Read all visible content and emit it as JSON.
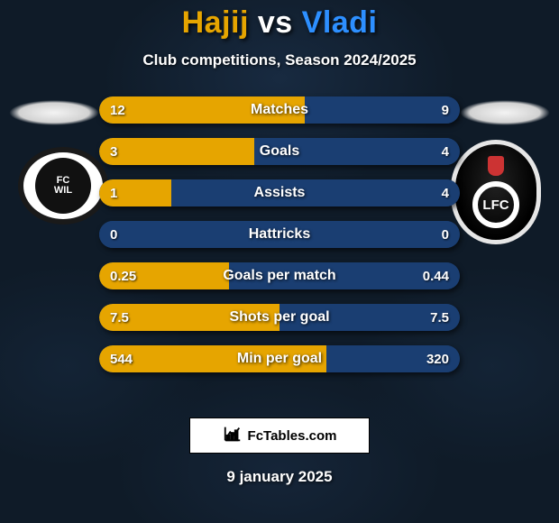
{
  "background_color": "#0f1b28",
  "header": {
    "player1": "Hajij",
    "vs": "vs",
    "player2": "Vladi",
    "player1_color": "#e6a500",
    "player2_color": "#2d8fff",
    "vs_color": "#ffffff",
    "subtitle": "Club competitions, Season 2024/2025",
    "title_fontsize": 34,
    "subtitle_fontsize": 17
  },
  "crest_left": {
    "line1": "FC",
    "line2": "WIL"
  },
  "crest_right": {
    "text": "LFC"
  },
  "bars": {
    "height": 30,
    "radius": 15,
    "left_color": "#e6a500",
    "right_color": "#1a3e72",
    "label_color": "#ffffff",
    "value_color": "#ffffff",
    "label_fontsize": 16,
    "value_fontsize": 15,
    "items": [
      {
        "label": "Matches",
        "left_val": "12",
        "right_val": "9",
        "left_pct": 57,
        "right_pct": 43
      },
      {
        "label": "Goals",
        "left_val": "3",
        "right_val": "4",
        "left_pct": 43,
        "right_pct": 57
      },
      {
        "label": "Assists",
        "left_val": "1",
        "right_val": "4",
        "left_pct": 20,
        "right_pct": 80
      },
      {
        "label": "Hattricks",
        "left_val": "0",
        "right_val": "0",
        "left_pct": 0,
        "right_pct": 100
      },
      {
        "label": "Goals per match",
        "left_val": "0.25",
        "right_val": "0.44",
        "left_pct": 36,
        "right_pct": 64
      },
      {
        "label": "Shots per goal",
        "left_val": "7.5",
        "right_val": "7.5",
        "left_pct": 50,
        "right_pct": 50
      },
      {
        "label": "Min per goal",
        "left_val": "544",
        "right_val": "320",
        "left_pct": 63,
        "right_pct": 37
      }
    ]
  },
  "brand": {
    "text": "FcTables.com"
  },
  "date": "9 january 2025"
}
